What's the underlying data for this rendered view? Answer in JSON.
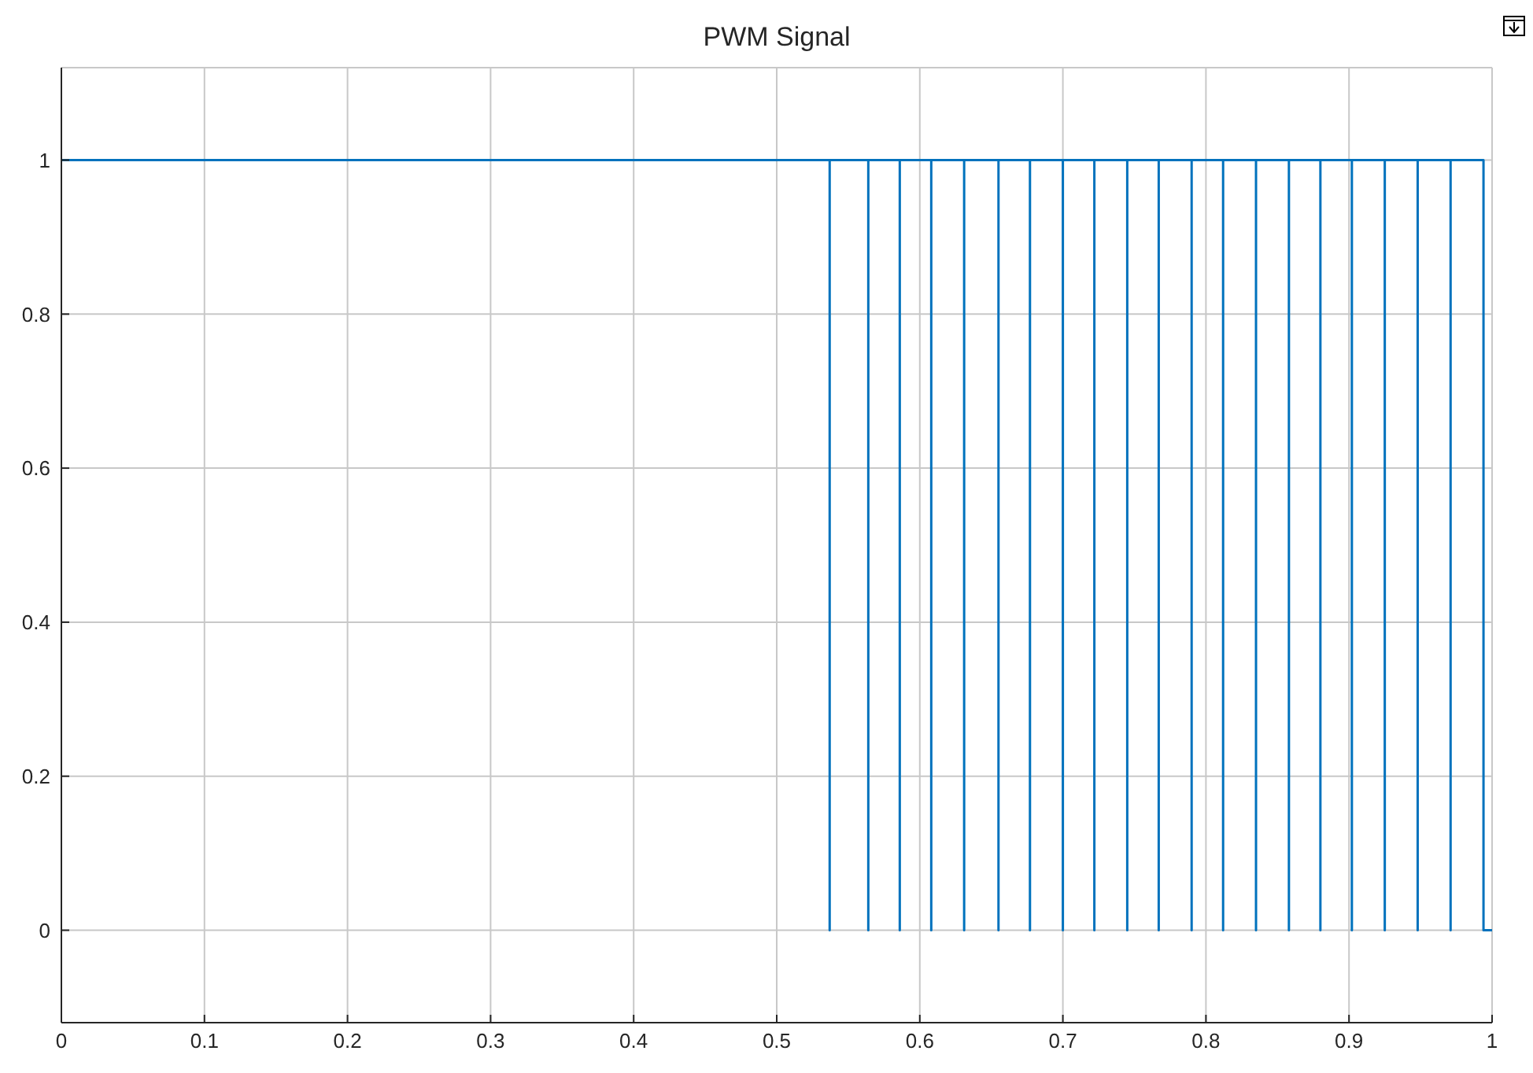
{
  "chart_data": {
    "type": "line",
    "title": "PWM Signal",
    "x": [
      0,
      0.537,
      0.537,
      0.537,
      0.564,
      0.564,
      0.564,
      0.586,
      0.586,
      0.586,
      0.608,
      0.608,
      0.608,
      0.631,
      0.631,
      0.631,
      0.655,
      0.655,
      0.655,
      0.677,
      0.677,
      0.677,
      0.7,
      0.7,
      0.7,
      0.722,
      0.722,
      0.722,
      0.745,
      0.745,
      0.745,
      0.767,
      0.767,
      0.767,
      0.79,
      0.79,
      0.79,
      0.812,
      0.812,
      0.812,
      0.835,
      0.835,
      0.835,
      0.858,
      0.858,
      0.858,
      0.88,
      0.88,
      0.88,
      0.902,
      0.902,
      0.902,
      0.925,
      0.925,
      0.925,
      0.948,
      0.948,
      0.948,
      0.971,
      0.971,
      0.971,
      0.994,
      0.994,
      1
    ],
    "series": [
      {
        "color": "#0072bd",
        "values": [
          1,
          1,
          0,
          1,
          1,
          0,
          1,
          1,
          0,
          1,
          1,
          0,
          1,
          1,
          0,
          1,
          1,
          0,
          1,
          1,
          0,
          1,
          1,
          0,
          1,
          1,
          0,
          1,
          1,
          0,
          1,
          1,
          0,
          1,
          1,
          0,
          1,
          1,
          0,
          1,
          1,
          0,
          1,
          1,
          0,
          1,
          1,
          0,
          1,
          1,
          0,
          1,
          1,
          0,
          1,
          1,
          0,
          1,
          1,
          0,
          1,
          1,
          0,
          0
        ]
      }
    ],
    "xlim": [
      0,
      1
    ],
    "xticks": [
      0,
      0.1,
      0.2,
      0.3,
      0.4,
      0.5,
      0.6,
      0.7,
      0.8,
      0.9,
      1
    ],
    "ylim": [
      -0.12,
      1.12
    ],
    "yticks": [
      0,
      0.2,
      0.4,
      0.6,
      0.8,
      1
    ],
    "grid": true
  }
}
